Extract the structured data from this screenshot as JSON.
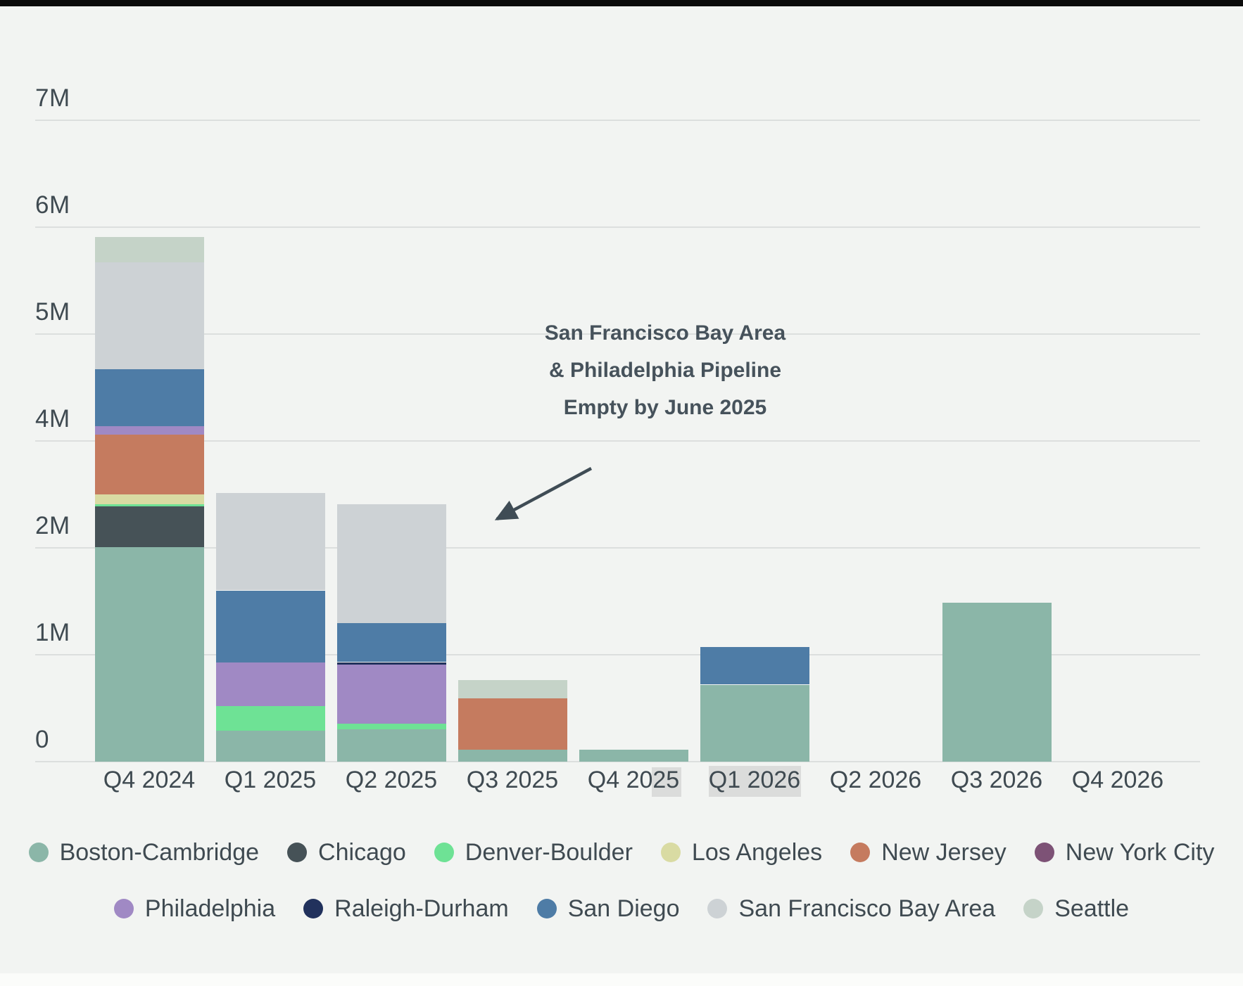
{
  "page": {
    "background_color": "#f2f4f2",
    "top_bar_color": "#0b0b0b",
    "bottom_band_color": "#fbfcfa",
    "gridline_color": "#dcdfde",
    "text_color": "#3f4a51"
  },
  "y_axis": {
    "ticks": [
      "7M",
      "6M",
      "5M",
      "4M",
      "2M",
      "1M",
      "0"
    ]
  },
  "x_axis": {
    "labels": [
      "Q4 2024",
      "Q1 2025",
      "Q2 2025",
      "Q3 2025",
      "Q4 2025",
      "Q1 2026",
      "Q2 2026",
      "Q3 2026",
      "Q4 2026"
    ]
  },
  "annotation": {
    "lines": [
      "San Francisco Bay Area",
      "& Philadelphia Pipeline",
      "Empty by June 2025"
    ],
    "color": "#46525b"
  },
  "label_highlights": [
    {
      "target": "Q4 2025",
      "note": "gray box behind last two digits"
    },
    {
      "target": "Q1 2026",
      "note": "gray box behind whole label"
    }
  ],
  "legend": {
    "rows": [
      {
        "items": [
          {
            "label": "Boston-Cambridge",
            "color": "#8bb6a8"
          },
          {
            "label": "Chicago",
            "color": "#465257"
          },
          {
            "label": "Denver-Boulder",
            "color": "#6ee295"
          },
          {
            "label": "Los Angeles",
            "color": "#d9dba3"
          },
          {
            "label": "New Jersey",
            "color": "#c57b5f"
          },
          {
            "label": "New York City",
            "color": "#7d5276"
          }
        ]
      },
      {
        "items": [
          {
            "label": "Philadelphia",
            "color": "#a089c4"
          },
          {
            "label": "Raleigh-Durham",
            "color": "#21315c"
          },
          {
            "label": "San Diego",
            "color": "#4e7ca6"
          },
          {
            "label": "San Francisco Bay Area",
            "color": "#cdd2d5"
          },
          {
            "label": "Seattle",
            "color": "#c5d3c8"
          }
        ]
      }
    ]
  },
  "chart_data": {
    "type": "bar",
    "stacked": true,
    "units": "millions (M)",
    "categories": [
      "Q4 2024",
      "Q1 2025",
      "Q2 2025",
      "Q3 2025",
      "Q4 2025",
      "Q1 2026",
      "Q2 2026",
      "Q3 2026",
      "Q4 2026"
    ],
    "series": [
      {
        "name": "Boston-Cambridge",
        "color": "#8bb6a8",
        "values": [
          2.01,
          0.29,
          0.3,
          0.11,
          0.11,
          0.72,
          0,
          1.49,
          0
        ]
      },
      {
        "name": "Chicago",
        "color": "#465257",
        "values": [
          0.38,
          0,
          0,
          0,
          0,
          0,
          0,
          0,
          0
        ]
      },
      {
        "name": "Denver-Boulder",
        "color": "#6ee295",
        "values": [
          0.02,
          0.23,
          0.06,
          0,
          0,
          0,
          0,
          0,
          0
        ]
      },
      {
        "name": "Los Angeles",
        "color": "#d9dba3",
        "values": [
          0.09,
          0,
          0,
          0,
          0,
          0,
          0,
          0,
          0
        ]
      },
      {
        "name": "New Jersey",
        "color": "#c57b5f",
        "values": [
          0.56,
          0,
          0,
          0.48,
          0,
          0,
          0,
          0,
          0
        ]
      },
      {
        "name": "New York City",
        "color": "#7d5276",
        "values": [
          0,
          0,
          0,
          0,
          0,
          0,
          0,
          0,
          0
        ]
      },
      {
        "name": "Philadelphia",
        "color": "#a089c4",
        "values": [
          0.08,
          0.41,
          0.55,
          0,
          0,
          0,
          0,
          0,
          0
        ]
      },
      {
        "name": "Raleigh-Durham",
        "color": "#21315c",
        "values": [
          0,
          0,
          0.02,
          0,
          0,
          0,
          0,
          0,
          0
        ]
      },
      {
        "name": "San Diego",
        "color": "#4e7ca6",
        "values": [
          0.53,
          0.67,
          0.37,
          0,
          0,
          0.35,
          0,
          0,
          0
        ]
      },
      {
        "name": "San Francisco Bay Area",
        "color": "#cdd2d5",
        "values": [
          1.0,
          0.91,
          1.11,
          0,
          0,
          0,
          0,
          0,
          0
        ]
      },
      {
        "name": "Seattle",
        "color": "#c5d3c8",
        "values": [
          0.24,
          0,
          0,
          0.17,
          0,
          0,
          0,
          0,
          0
        ]
      }
    ],
    "ylim": [
      0,
      7
    ],
    "yticks_printed": [
      "0",
      "1M",
      "2M",
      "4M",
      "5M",
      "6M",
      "7M"
    ],
    "grid": true,
    "legend_position": "bottom",
    "annotation_text": "San Francisco Bay Area & Philadelphia Pipeline Empty by June 2025"
  }
}
